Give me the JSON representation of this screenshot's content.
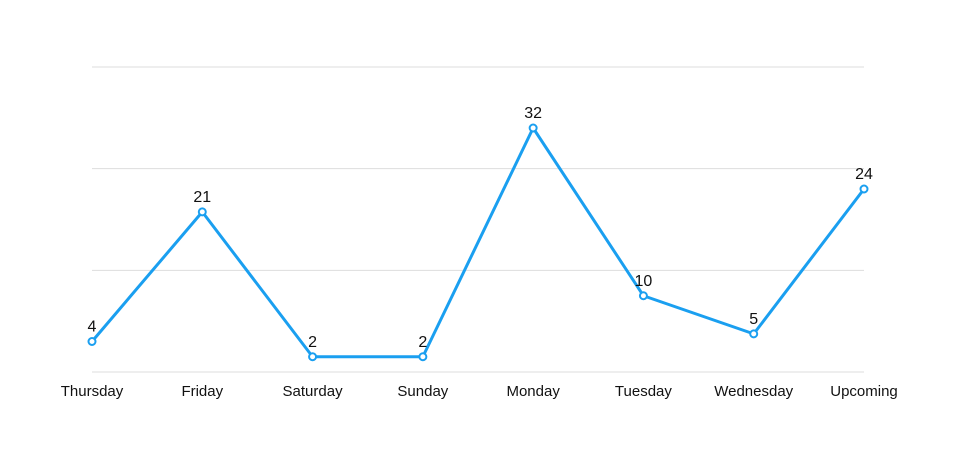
{
  "chart_data": {
    "type": "line",
    "categories": [
      "Thursday",
      "Friday",
      "Saturday",
      "Sunday",
      "Monday",
      "Tuesday",
      "Wednesday",
      "Upcoming"
    ],
    "series": [
      {
        "color": "#1a9ff0",
        "values": [
          4,
          21,
          2,
          2,
          32,
          10,
          5,
          24
        ]
      }
    ],
    "ylim": [
      0,
      40
    ],
    "yticks": [
      0,
      13.33,
      26.67,
      40
    ],
    "grid": true
  }
}
